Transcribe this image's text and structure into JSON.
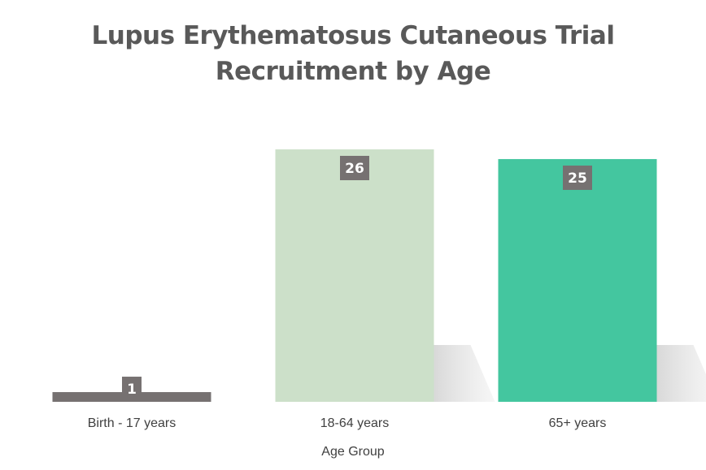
{
  "chart_data": {
    "type": "bar",
    "title": "Lupus Erythematosus Cutaneous Trial Recruitment by Age",
    "title_lines": [
      "Lupus Erythematosus Cutaneous Trial",
      "Recruitment by Age"
    ],
    "categories": [
      "Birth - 17 years",
      "18-64 years",
      "65+ years"
    ],
    "values": [
      1,
      26,
      25
    ],
    "data_labels": [
      "1",
      "26",
      "25"
    ],
    "xlabel": "Age Group",
    "ylabel": "",
    "ylim": [
      0,
      26
    ],
    "grid": false,
    "legend": "none",
    "colors": [
      "#767171",
      "#CCE0C9",
      "#44C69F"
    ],
    "label_box_color": "#767171",
    "shadow_color": "#D9D9D9"
  }
}
